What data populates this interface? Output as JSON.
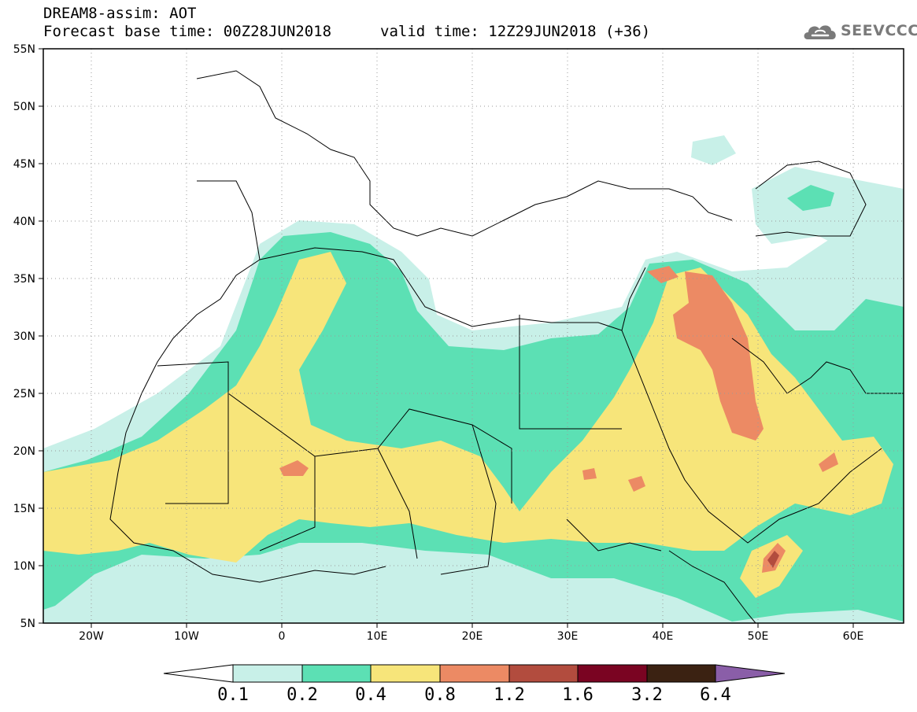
{
  "title": {
    "line1": "DREAM8-assim: AOT",
    "line2": "Forecast base time: 00Z28JUN2018",
    "valid": "valid time: 12Z29JUN2018 (+36)"
  },
  "logo": {
    "text": "SEEVCCC",
    "icon": "cloud-icon"
  },
  "map": {
    "lon_range": [
      -25,
      65
    ],
    "lat_range": [
      5,
      55
    ],
    "lat_ticks": [
      "55N",
      "50N",
      "45N",
      "40N",
      "35N",
      "30N",
      "25N",
      "20N",
      "15N",
      "10N",
      "5N"
    ],
    "lon_ticks": [
      "20W",
      "10W",
      "0",
      "10E",
      "20E",
      "30E",
      "40E",
      "50E",
      "60E"
    ],
    "grid": true
  },
  "colorbar": {
    "labels": [
      "0.1",
      "0.2",
      "0.4",
      "0.8",
      "1.2",
      "1.6",
      "3.2",
      "6.4"
    ],
    "colors": [
      "#ffffff",
      "#c8f0e8",
      "#5ce0b4",
      "#f7e57a",
      "#ec8a64",
      "#b24c3e",
      "#7a0422",
      "#3b2212",
      "#8a5ea8"
    ]
  }
}
